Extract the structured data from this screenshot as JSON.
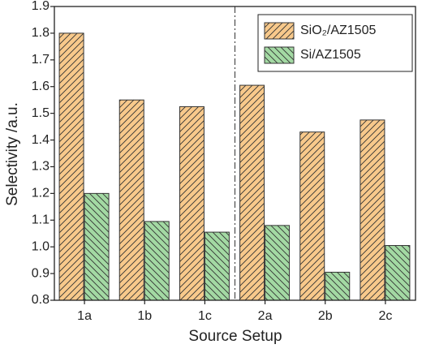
{
  "chart_data": {
    "type": "bar",
    "x_label": "Source Setup",
    "y_label": "Selectivity /a.u.",
    "categories": [
      "1a",
      "1b",
      "1c",
      "2a",
      "2b",
      "2c"
    ],
    "series": [
      {
        "name": "SiO₂/AZ1505",
        "color": "#f8c98b",
        "values": [
          1.8,
          1.55,
          1.525,
          1.605,
          1.43,
          1.475
        ]
      },
      {
        "name": "Si/AZ1505",
        "color": "#a3d9a3",
        "values": [
          1.2,
          1.095,
          1.055,
          1.08,
          0.905,
          1.005
        ]
      }
    ],
    "ylim": [
      0.8,
      1.9
    ],
    "yticks": [
      0.8,
      0.9,
      {
        "value": 1,
        "label": "1.0"
      },
      1.1,
      1.2,
      1.3,
      1.4,
      1.5,
      1.6,
      1.7,
      1.8,
      1.9
    ],
    "legend": "upper right"
  }
}
